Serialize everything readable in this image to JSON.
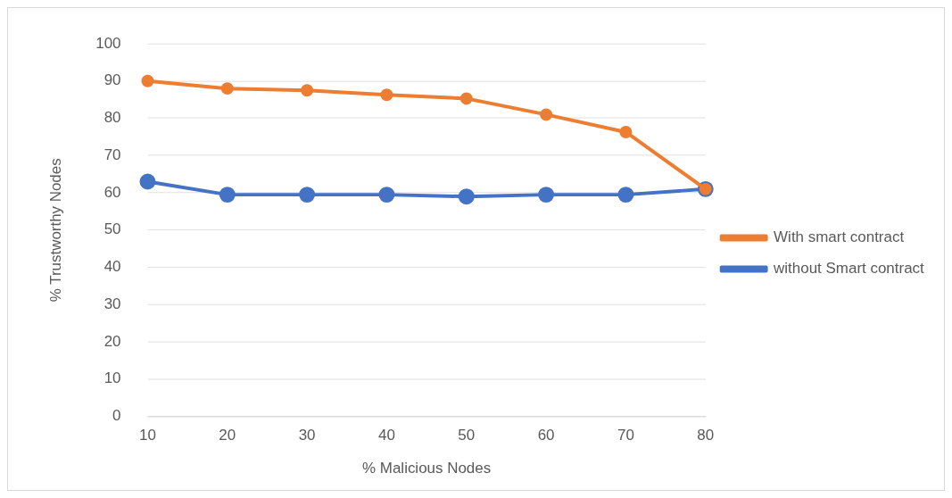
{
  "chart_data": {
    "type": "line",
    "xlabel": "% Malicious Nodes",
    "ylabel": "% Trustworthy Nodes",
    "categories": [
      "10",
      "20",
      "30",
      "40",
      "50",
      "60",
      "70",
      "80"
    ],
    "series": [
      {
        "name": "without Smart contract",
        "color": "#4472c4",
        "values": [
          63,
          59.5,
          59.5,
          59.5,
          59,
          59.5,
          59.5,
          61
        ]
      },
      {
        "name": "With smart contract",
        "color": "#ed7d31",
        "values": [
          90,
          88,
          87.5,
          86.3,
          85.3,
          81,
          76.3,
          61
        ]
      }
    ],
    "ylim": [
      0,
      100
    ],
    "yticks": [
      0,
      10,
      20,
      30,
      40,
      50,
      60,
      70,
      80,
      90,
      100
    ],
    "grid": "y",
    "legend": "right",
    "marker": "circle",
    "line_style": "solid"
  }
}
